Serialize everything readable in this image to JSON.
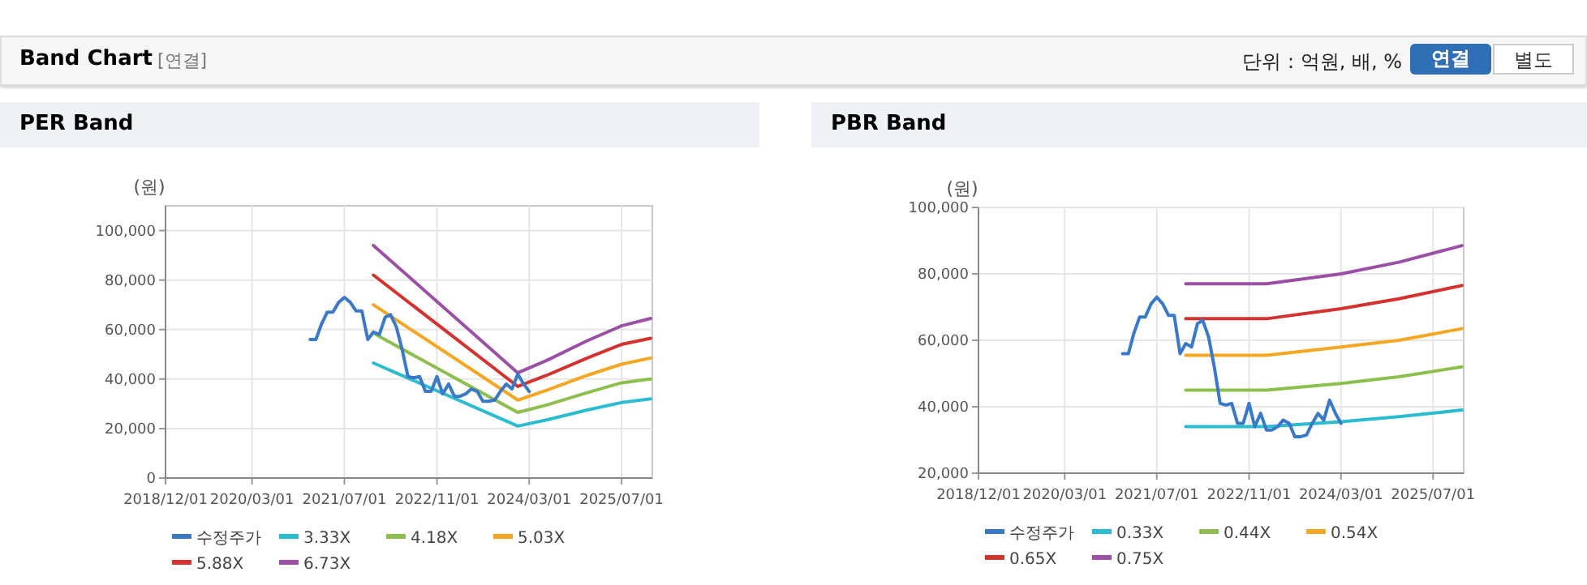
{
  "chart_data": [
    {
      "type": "line",
      "title": "PER Band",
      "ylabel": "(원)",
      "grid": true,
      "legend": "bottom",
      "marker": "none",
      "line_style": "solid",
      "annotations": [
        "Band Chart",
        "[연결]",
        "단위 : 억원, 배, %",
        "연결",
        "별도"
      ],
      "xlim": [
        "2018-12-01",
        "2025-12-10"
      ],
      "ylim": [
        0,
        110000
      ],
      "xticks": [
        {
          "value": "2018-12-01",
          "label": "2018/12/01"
        },
        {
          "value": "2020-03-01",
          "label": "2020/03/01"
        },
        {
          "value": "2021-07-01",
          "label": "2021/07/01"
        },
        {
          "value": "2022-11-01",
          "label": "2022/11/01"
        },
        {
          "value": "2024-03-01",
          "label": "2024/03/01"
        },
        {
          "value": "2025-07-01",
          "label": "2025/07/01"
        }
      ],
      "yticks": [
        {
          "value": 0,
          "label": "0"
        },
        {
          "value": 20000,
          "label": "20,000"
        },
        {
          "value": 40000,
          "label": "40,000"
        },
        {
          "value": 60000,
          "label": "60,000"
        },
        {
          "value": 80000,
          "label": "80,000"
        },
        {
          "value": 100000,
          "label": "100,000"
        }
      ],
      "series": [
        {
          "name": "수정주가",
          "color": "#3a78c8",
          "x": [
            "2021-01",
            "2021-02",
            "2021-03",
            "2021-04",
            "2021-05",
            "2021-06",
            "2021-07",
            "2021-08",
            "2021-09",
            "2021-10",
            "2021-11",
            "2021-12",
            "2022-01",
            "2022-02",
            "2022-03",
            "2022-04",
            "2022-05",
            "2022-06",
            "2022-07",
            "2022-08",
            "2022-09",
            "2022-10",
            "2022-11",
            "2022-12",
            "2023-01",
            "2023-02",
            "2023-03",
            "2023-04",
            "2023-05",
            "2023-06",
            "2023-07",
            "2023-08",
            "2023-09",
            "2023-10",
            "2023-11",
            "2023-12",
            "2024-01",
            "2024-02",
            "2024-03"
          ],
          "values": [
            56000,
            56000,
            62000,
            67000,
            67000,
            71000,
            73000,
            71000,
            67500,
            67500,
            56000,
            59000,
            58000,
            65000,
            66000,
            61000,
            52000,
            41000,
            40500,
            41000,
            35000,
            35000,
            41000,
            34000,
            38000,
            33000,
            33000,
            34000,
            36000,
            35000,
            31000,
            31000,
            31500,
            35000,
            38000,
            36000,
            42000,
            38000,
            35000
          ]
        },
        {
          "name": "3.33X",
          "color": "#2cbccf",
          "x": [
            "2021-12",
            "2024-01",
            "2024-06",
            "2025-01",
            "2025-07",
            "2025-12"
          ],
          "values": [
            46500,
            21000,
            23500,
            27500,
            30500,
            32000
          ]
        },
        {
          "name": "4.18X",
          "color": "#8dbf4f",
          "x": [
            "2021-12",
            "2024-01",
            "2024-06",
            "2025-01",
            "2025-07",
            "2025-12"
          ],
          "values": [
            58500,
            26500,
            29500,
            34500,
            38500,
            40000
          ]
        },
        {
          "name": "5.03X",
          "color": "#f5a623",
          "x": [
            "2021-12",
            "2024-01",
            "2024-06",
            "2025-01",
            "2025-07",
            "2025-12"
          ],
          "values": [
            70000,
            31500,
            35500,
            41500,
            46000,
            48500
          ]
        },
        {
          "name": "5.88X",
          "color": "#d3322f",
          "x": [
            "2021-12",
            "2024-01",
            "2024-06",
            "2025-01",
            "2025-07",
            "2025-12"
          ],
          "values": [
            82000,
            37000,
            41500,
            48500,
            54000,
            56500
          ]
        },
        {
          "name": "6.73X",
          "color": "#9b50a6",
          "x": [
            "2021-12",
            "2024-01",
            "2024-06",
            "2025-01",
            "2025-07",
            "2025-12"
          ],
          "values": [
            94000,
            42500,
            47500,
            55500,
            61500,
            64500
          ]
        }
      ]
    },
    {
      "type": "line",
      "title": "PBR Band",
      "ylabel": "(원)",
      "grid": true,
      "legend": "bottom",
      "marker": "none",
      "line_style": "solid",
      "xlim": [
        "2018-12-01",
        "2025-12-10"
      ],
      "ylim": [
        20000,
        100000
      ],
      "xticks": [
        {
          "value": "2018-12-01",
          "label": "2018/12/01"
        },
        {
          "value": "2020-03-01",
          "label": "2020/03/01"
        },
        {
          "value": "2021-07-01",
          "label": "2021/07/01"
        },
        {
          "value": "2022-11-01",
          "label": "2022/11/01"
        },
        {
          "value": "2024-03-01",
          "label": "2024/03/01"
        },
        {
          "value": "2025-07-01",
          "label": "2025/07/01"
        }
      ],
      "yticks": [
        {
          "value": 20000,
          "label": "20,000"
        },
        {
          "value": 40000,
          "label": "40,000"
        },
        {
          "value": 60000,
          "label": "60,000"
        },
        {
          "value": 80000,
          "label": "80,000"
        },
        {
          "value": 100000,
          "label": "100,000"
        }
      ],
      "series": [
        {
          "name": "수정주가",
          "color": "#3a78c8",
          "x": [
            "2021-01",
            "2021-02",
            "2021-03",
            "2021-04",
            "2021-05",
            "2021-06",
            "2021-07",
            "2021-08",
            "2021-09",
            "2021-10",
            "2021-11",
            "2021-12",
            "2022-01",
            "2022-02",
            "2022-03",
            "2022-04",
            "2022-05",
            "2022-06",
            "2022-07",
            "2022-08",
            "2022-09",
            "2022-10",
            "2022-11",
            "2022-12",
            "2023-01",
            "2023-02",
            "2023-03",
            "2023-04",
            "2023-05",
            "2023-06",
            "2023-07",
            "2023-08",
            "2023-09",
            "2023-10",
            "2023-11",
            "2023-12",
            "2024-01",
            "2024-02",
            "2024-03"
          ],
          "values": [
            56000,
            56000,
            62000,
            67000,
            67000,
            71000,
            73000,
            71000,
            67500,
            67500,
            56000,
            59000,
            58000,
            65000,
            66000,
            61000,
            52000,
            41000,
            40500,
            41000,
            35000,
            35000,
            41000,
            34000,
            38000,
            33000,
            33000,
            34000,
            36000,
            35000,
            31000,
            31000,
            31500,
            35000,
            38000,
            36000,
            42000,
            38000,
            35000
          ]
        },
        {
          "name": "0.33X",
          "color": "#2cbccf",
          "x": [
            "2021-12",
            "2023-02",
            "2024-03",
            "2025-01",
            "2025-12"
          ],
          "values": [
            34000,
            34000,
            35500,
            37000,
            39000
          ]
        },
        {
          "name": "0.44X",
          "color": "#8dbf4f",
          "x": [
            "2021-12",
            "2023-02",
            "2024-03",
            "2025-01",
            "2025-12"
          ],
          "values": [
            45000,
            45000,
            47000,
            49000,
            52000
          ]
        },
        {
          "name": "0.54X",
          "color": "#f5a623",
          "x": [
            "2021-12",
            "2023-02",
            "2024-03",
            "2025-01",
            "2025-12"
          ],
          "values": [
            55500,
            55500,
            58000,
            60000,
            63500
          ]
        },
        {
          "name": "0.65X",
          "color": "#d3322f",
          "x": [
            "2021-12",
            "2023-02",
            "2024-03",
            "2025-01",
            "2025-12"
          ],
          "values": [
            66500,
            66500,
            69500,
            72500,
            76500
          ]
        },
        {
          "name": "0.75X",
          "color": "#9b50a6",
          "x": [
            "2021-12",
            "2023-02",
            "2024-03",
            "2025-01",
            "2025-12"
          ],
          "values": [
            77000,
            77000,
            80000,
            83500,
            88500
          ]
        }
      ]
    }
  ]
}
